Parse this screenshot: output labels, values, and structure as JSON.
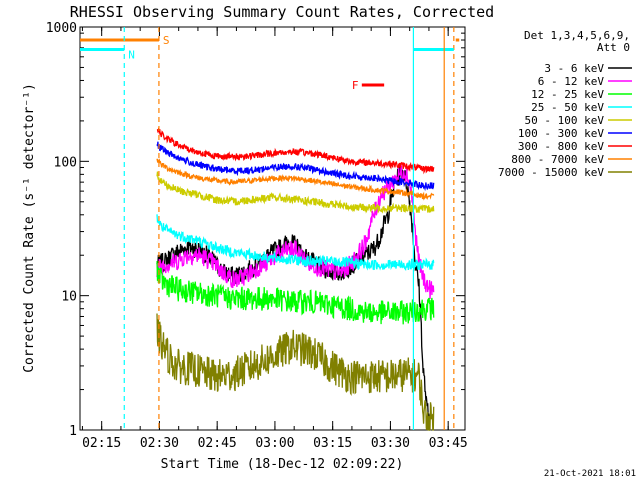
{
  "chart_data": {
    "type": "line",
    "title": "RHESSI Observing Summary Count Rates, Corrected",
    "xlabel": "Start Time (18-Dec-12 02:09:22)",
    "ylabel": "Corrected Count Rate (s⁻¹ detector⁻¹)",
    "x_unit": "minutes since 02:09:22",
    "xlim": [
      0,
      100
    ],
    "ylim": [
      1,
      1000
    ],
    "y_scale": "log",
    "x_ticks": [
      {
        "x": 5.63,
        "label": "02:15"
      },
      {
        "x": 20.63,
        "label": "02:30"
      },
      {
        "x": 35.63,
        "label": "02:45"
      },
      {
        "x": 50.63,
        "label": "03:00"
      },
      {
        "x": 65.63,
        "label": "03:15"
      },
      {
        "x": 80.63,
        "label": "03:30"
      },
      {
        "x": 95.63,
        "label": "03:45"
      }
    ],
    "y_ticks": [
      {
        "y": 1,
        "label": "1"
      },
      {
        "y": 10,
        "label": "10"
      },
      {
        "y": 100,
        "label": "100"
      },
      {
        "y": 1000,
        "label": "1000"
      }
    ],
    "legend_title": [
      "Det 1,3,4,5,6,9,",
      "Att 0"
    ],
    "series": [
      {
        "name": "3 - 6 keV",
        "color": "#000000",
        "noise": 0.07,
        "points": [
          [
            20,
            17
          ],
          [
            22,
            18
          ],
          [
            25,
            21
          ],
          [
            28,
            23
          ],
          [
            31,
            22
          ],
          [
            34,
            19
          ],
          [
            37,
            15
          ],
          [
            40,
            14
          ],
          [
            43,
            15
          ],
          [
            46,
            17
          ],
          [
            48,
            19
          ],
          [
            51,
            22
          ],
          [
            54,
            25
          ],
          [
            56,
            24
          ],
          [
            58,
            20
          ],
          [
            60,
            18
          ],
          [
            63,
            16
          ],
          [
            66,
            15
          ],
          [
            68,
            15
          ],
          [
            71,
            17
          ],
          [
            74,
            20
          ],
          [
            76,
            22
          ],
          [
            77,
            24
          ],
          [
            78,
            28
          ],
          [
            80,
            40
          ],
          [
            81,
            55
          ],
          [
            82,
            70
          ],
          [
            83,
            80
          ],
          [
            84,
            85
          ],
          [
            85,
            65
          ],
          [
            86,
            40
          ],
          [
            87,
            18
          ],
          [
            88,
            12
          ],
          [
            88.5,
            7
          ],
          [
            89,
            3
          ],
          [
            90,
            1.5
          ],
          [
            91,
            1.1
          ]
        ]
      },
      {
        "name": "6 - 12 keV",
        "color": "#ff00ff",
        "noise": 0.07,
        "points": [
          [
            20,
            16
          ],
          [
            22,
            17
          ],
          [
            25,
            18
          ],
          [
            28,
            20
          ],
          [
            31,
            20
          ],
          [
            34,
            18
          ],
          [
            37,
            15
          ],
          [
            40,
            13
          ],
          [
            43,
            14
          ],
          [
            46,
            16
          ],
          [
            48,
            17
          ],
          [
            51,
            20
          ],
          [
            54,
            22
          ],
          [
            56,
            22
          ],
          [
            58,
            19
          ],
          [
            60,
            17
          ],
          [
            63,
            16
          ],
          [
            66,
            15
          ],
          [
            68,
            15
          ],
          [
            71,
            18
          ],
          [
            74,
            24
          ],
          [
            75,
            30
          ],
          [
            76,
            38
          ],
          [
            77,
            45
          ],
          [
            78,
            55
          ],
          [
            80,
            65
          ],
          [
            82,
            75
          ],
          [
            84,
            85
          ],
          [
            85,
            80
          ],
          [
            86,
            60
          ],
          [
            87,
            30
          ],
          [
            88,
            18
          ],
          [
            89,
            14
          ],
          [
            90,
            12
          ],
          [
            91,
            11
          ],
          [
            92,
            11
          ]
        ]
      },
      {
        "name": "12 - 25 keV",
        "color": "#00ff00",
        "noise": 0.09,
        "points": [
          [
            20,
            16
          ],
          [
            21,
            13
          ],
          [
            23,
            12
          ],
          [
            26,
            11
          ],
          [
            30,
            10.5
          ],
          [
            35,
            10
          ],
          [
            40,
            9.5
          ],
          [
            45,
            9.5
          ],
          [
            50,
            9.5
          ],
          [
            55,
            9
          ],
          [
            60,
            9
          ],
          [
            65,
            8.5
          ],
          [
            70,
            8
          ],
          [
            75,
            7.5
          ],
          [
            80,
            7.5
          ],
          [
            85,
            7.5
          ],
          [
            89,
            8
          ],
          [
            92,
            8
          ]
        ]
      },
      {
        "name": "25 - 50 keV",
        "color": "#00ffff",
        "noise": 0.04,
        "points": [
          [
            20,
            38
          ],
          [
            21,
            33
          ],
          [
            23,
            30
          ],
          [
            26,
            28
          ],
          [
            30,
            26
          ],
          [
            35,
            23
          ],
          [
            40,
            21
          ],
          [
            45,
            20
          ],
          [
            50,
            19
          ],
          [
            55,
            18.5
          ],
          [
            60,
            18
          ],
          [
            65,
            18
          ],
          [
            70,
            17.5
          ],
          [
            75,
            17
          ],
          [
            80,
            17
          ],
          [
            85,
            17
          ],
          [
            89,
            17
          ],
          [
            92,
            17
          ]
        ]
      },
      {
        "name": "50 - 100 keV",
        "color": "#cccc00",
        "noise": 0.03,
        "points": [
          [
            20,
            80
          ],
          [
            21,
            72
          ],
          [
            23,
            65
          ],
          [
            26,
            60
          ],
          [
            30,
            57
          ],
          [
            35,
            52
          ],
          [
            40,
            50
          ],
          [
            45,
            52
          ],
          [
            50,
            54
          ],
          [
            55,
            52
          ],
          [
            60,
            50
          ],
          [
            65,
            48
          ],
          [
            70,
            46
          ],
          [
            75,
            45
          ],
          [
            80,
            45
          ],
          [
            85,
            45
          ],
          [
            89,
            44
          ],
          [
            92,
            44
          ]
        ]
      },
      {
        "name": "100 - 300 keV",
        "color": "#0000ff",
        "noise": 0.025,
        "points": [
          [
            20,
            135
          ],
          [
            21,
            125
          ],
          [
            23,
            115
          ],
          [
            26,
            105
          ],
          [
            30,
            95
          ],
          [
            35,
            88
          ],
          [
            40,
            85
          ],
          [
            45,
            86
          ],
          [
            50,
            90
          ],
          [
            55,
            92
          ],
          [
            60,
            88
          ],
          [
            65,
            82
          ],
          [
            70,
            78
          ],
          [
            75,
            76
          ],
          [
            80,
            72
          ],
          [
            85,
            70
          ],
          [
            89,
            66
          ],
          [
            92,
            66
          ]
        ]
      },
      {
        "name": "300 - 800 keV",
        "color": "#ff0000",
        "noise": 0.025,
        "points": [
          [
            20,
            175
          ],
          [
            21,
            160
          ],
          [
            23,
            145
          ],
          [
            26,
            130
          ],
          [
            30,
            118
          ],
          [
            35,
            110
          ],
          [
            40,
            108
          ],
          [
            45,
            110
          ],
          [
            50,
            115
          ],
          [
            55,
            118
          ],
          [
            60,
            115
          ],
          [
            65,
            108
          ],
          [
            70,
            100
          ],
          [
            75,
            98
          ],
          [
            80,
            96
          ],
          [
            85,
            92
          ],
          [
            89,
            88
          ],
          [
            92,
            88
          ]
        ]
      },
      {
        "name": "800 - 7000 keV",
        "color": "#ff8000",
        "noise": 0.02,
        "points": [
          [
            20,
            105
          ],
          [
            21,
            95
          ],
          [
            23,
            88
          ],
          [
            26,
            82
          ],
          [
            30,
            76
          ],
          [
            35,
            72
          ],
          [
            40,
            70
          ],
          [
            45,
            72
          ],
          [
            50,
            75
          ],
          [
            55,
            75
          ],
          [
            60,
            72
          ],
          [
            65,
            68
          ],
          [
            70,
            65
          ],
          [
            75,
            62
          ],
          [
            80,
            60
          ],
          [
            85,
            58
          ],
          [
            89,
            55
          ],
          [
            92,
            55
          ]
        ]
      },
      {
        "name": "7000 - 15000 keV",
        "color": "#808000",
        "noise": 0.13,
        "points": [
          [
            20,
            5.5
          ],
          [
            21,
            4.5
          ],
          [
            22,
            4
          ],
          [
            23,
            3.5
          ],
          [
            25,
            3
          ],
          [
            30,
            2.8
          ],
          [
            35,
            2.5
          ],
          [
            40,
            2.6
          ],
          [
            45,
            3
          ],
          [
            50,
            3.5
          ],
          [
            55,
            4.2
          ],
          [
            60,
            3.8
          ],
          [
            65,
            3
          ],
          [
            70,
            2.5
          ],
          [
            75,
            2.5
          ],
          [
            80,
            2.5
          ],
          [
            85,
            2.6
          ],
          [
            88,
            2.5
          ],
          [
            89,
            1.5
          ],
          [
            90,
            1.2
          ],
          [
            92,
            1.2
          ]
        ]
      }
    ],
    "flags": [
      {
        "label": "S",
        "color": "#ff8000",
        "bar": [
          0,
          20.5
        ],
        "y": 800,
        "vlines": [
          20.5,
          97.1
        ]
      },
      {
        "label": "N",
        "color": "#00ffff",
        "bar": [
          0,
          11.5
        ],
        "y": 680,
        "vlines": [
          11.5,
          86.6
        ]
      },
      {
        "label": "F",
        "color": "#ff0000",
        "bar": [
          73.2,
          79.0
        ],
        "y": 370,
        "vlines": []
      },
      {
        "label": "",
        "color": "#00ffff",
        "bar": [
          86.6,
          97.1
        ],
        "y": 680,
        "vlines": []
      },
      {
        "label": "",
        "color": "#ff8000",
        "bar": [
          97.6,
          98.5
        ],
        "y": 800,
        "vlines": [
          94.6
        ]
      }
    ],
    "timestamp": "21-Oct-2021 18:01"
  }
}
